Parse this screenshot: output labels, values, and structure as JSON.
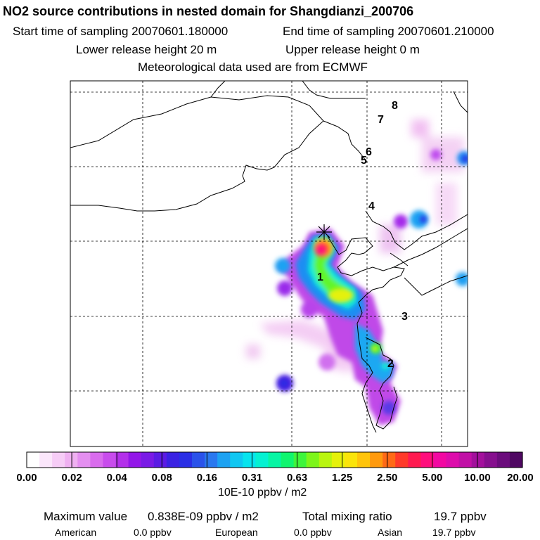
{
  "header": {
    "title": "NO2 source contributions in nested domain for Shangdianzi_200706",
    "start_time": "Start time of sampling 20070601.180000",
    "end_time": "End time of sampling 20070601.210000",
    "lower_height": "Lower release height   20 m",
    "upper_height": "Upper release height    0 m",
    "met_data": "Meteorological data used are from ECMWF"
  },
  "chart_data": {
    "type": "heatmap",
    "title": "NO2 source contributions in nested domain for Shangdianzi_200706",
    "colorbar": {
      "tick_labels": [
        "0.00",
        "0.02",
        "0.04",
        "0.08",
        "0.16",
        "0.31",
        "0.63",
        "1.25",
        "2.50",
        "5.00",
        "10.00",
        "20.00"
      ],
      "units": "10E-10 ppbv / m2",
      "colors": [
        "#ffffff",
        "#fbe6fb",
        "#f6ccf6",
        "#efb0f1",
        "#e48ff0",
        "#d96ced",
        "#c84cec",
        "#b330ea",
        "#9317e8",
        "#7a1ae6",
        "#5b1be4",
        "#3a22e3",
        "#2a2fe5",
        "#2a52ea",
        "#2a78ef",
        "#1da2f2",
        "#10c7f2",
        "#07e4ee",
        "#05f1d2",
        "#07f5a4",
        "#10f56f",
        "#3ef53c",
        "#7df51b",
        "#b9f50f",
        "#e5f10a",
        "#fae40a",
        "#ffc40b",
        "#ff9a0e",
        "#ff6a16",
        "#ff3a2a",
        "#ff1a50",
        "#ff0d7c",
        "#f208a2",
        "#dd0cab",
        "#c110a6",
        "#a3109c",
        "#860f8e",
        "#6b0c7c",
        "#4f0862"
      ]
    },
    "site_marker": "Shangdianzi",
    "station_labels": [
      "1",
      "2",
      "3",
      "4",
      "5",
      "6",
      "7",
      "8"
    ],
    "grid": true
  },
  "footer": {
    "max_label": "Maximum value",
    "max_value": "0.838E-09 ppbv / m2",
    "total_label": "Total mixing ratio",
    "total_value": "19.7 ppbv",
    "american_label": "American",
    "american_value": "0.0 ppbv",
    "european_label": "European",
    "european_value": "0.0 ppbv",
    "asian_label": "Asian",
    "asian_value": "19.7 ppbv"
  }
}
